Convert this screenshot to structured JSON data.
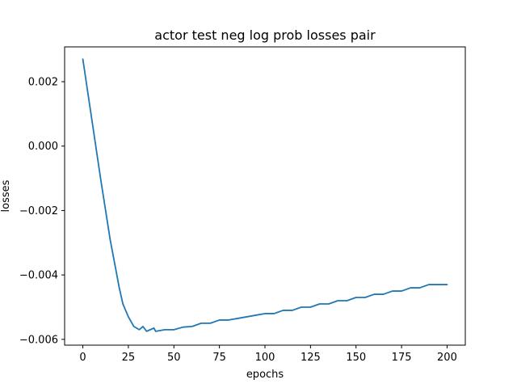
{
  "chart_data": {
    "type": "line",
    "title": "actor test neg log prob losses pair",
    "xlabel": "epochs",
    "ylabel": "losses",
    "xlim": [
      -10,
      210
    ],
    "ylim": [
      -0.00618,
      0.00308
    ],
    "grid": false,
    "legend": "none",
    "x_ticks": [
      0,
      25,
      50,
      75,
      100,
      125,
      150,
      175,
      200
    ],
    "x_tick_labels": [
      "0",
      "25",
      "50",
      "75",
      "100",
      "125",
      "150",
      "175",
      "200"
    ],
    "y_ticks": [
      0.002,
      0.0,
      -0.002,
      -0.004,
      -0.006
    ],
    "y_tick_labels": [
      "0.002",
      "0.000",
      "−0.002",
      "−0.004",
      "−0.006"
    ],
    "series": [
      {
        "color": "#1f77b4",
        "x": [
          0,
          5,
          10,
          15,
          20,
          22,
          25,
          28,
          31,
          33,
          35,
          37,
          39,
          40,
          45,
          50,
          55,
          60,
          65,
          70,
          75,
          80,
          85,
          90,
          95,
          100,
          105,
          110,
          115,
          120,
          125,
          130,
          135,
          140,
          145,
          150,
          155,
          160,
          165,
          170,
          175,
          180,
          185,
          190,
          193,
          195,
          197,
          199,
          200
        ],
        "y": [
          0.0027,
          0.0008,
          -0.0011,
          -0.0029,
          -0.0044,
          -0.0049,
          -0.0053,
          -0.0056,
          -0.0057,
          -0.0056,
          -0.00575,
          -0.0057,
          -0.00565,
          -0.00575,
          -0.0057,
          -0.0057,
          -0.00562,
          -0.0056,
          -0.0055,
          -0.0055,
          -0.0054,
          -0.0054,
          -0.00535,
          -0.0053,
          -0.00525,
          -0.0052,
          -0.0052,
          -0.0051,
          -0.0051,
          -0.005,
          -0.005,
          -0.0049,
          -0.0049,
          -0.0048,
          -0.0048,
          -0.0047,
          -0.0047,
          -0.0046,
          -0.0046,
          -0.0045,
          -0.0045,
          -0.0044,
          -0.0044,
          -0.0043,
          -0.0043,
          -0.0043,
          -0.0043,
          -0.0043,
          -0.0043
        ]
      }
    ]
  }
}
